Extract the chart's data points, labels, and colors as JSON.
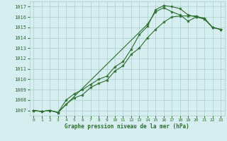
{
  "xlabel": "Graphe pression niveau de la mer (hPa)",
  "bg_color": "#d6eef0",
  "grid_color": "#aacccc",
  "line_color": "#2d6e2d",
  "ylim": [
    1006.5,
    1017.5
  ],
  "xlim": [
    -0.5,
    23.5
  ],
  "yticks": [
    1007,
    1008,
    1009,
    1010,
    1011,
    1012,
    1013,
    1014,
    1015,
    1016,
    1017
  ],
  "xticks": [
    0,
    1,
    2,
    3,
    4,
    5,
    6,
    7,
    8,
    9,
    10,
    11,
    12,
    13,
    14,
    15,
    16,
    17,
    18,
    19,
    20,
    21,
    22,
    23
  ],
  "line1_x": [
    0,
    1,
    2,
    3,
    4,
    5,
    6,
    7,
    8,
    9,
    10,
    11,
    12,
    13,
    14,
    15,
    16,
    17,
    18,
    19,
    20,
    21,
    22,
    23
  ],
  "line1_y": [
    1007.0,
    1006.9,
    1007.0,
    1006.8,
    1008.0,
    1008.6,
    1009.0,
    1009.5,
    1010.0,
    1010.3,
    1011.2,
    1011.7,
    1012.9,
    1014.3,
    1015.1,
    1016.7,
    1017.1,
    1017.0,
    1016.8,
    1016.2,
    1016.0,
    1015.9,
    1015.0,
    1014.8
  ],
  "line2_x": [
    0,
    1,
    2,
    3,
    4,
    5,
    6,
    7,
    8,
    9,
    10,
    11,
    12,
    13,
    14,
    15,
    16,
    17,
    18,
    19,
    20,
    21,
    22,
    23
  ],
  "line2_y": [
    1007.0,
    1006.9,
    1007.0,
    1006.8,
    1007.6,
    1008.2,
    1008.5,
    1009.2,
    1009.6,
    1009.9,
    1010.8,
    1011.3,
    1012.4,
    1013.0,
    1014.0,
    1014.8,
    1015.5,
    1016.0,
    1016.1,
    1016.1,
    1016.1,
    1015.8,
    1015.0,
    1014.8
  ],
  "line3_x": [
    0,
    1,
    2,
    3,
    14,
    15,
    16,
    17,
    18,
    19,
    20,
    21,
    22,
    23
  ],
  "line3_y": [
    1007.0,
    1006.9,
    1007.0,
    1006.8,
    1015.3,
    1016.5,
    1016.9,
    1016.5,
    1016.2,
    1015.6,
    1016.0,
    1015.8,
    1015.0,
    1014.8
  ]
}
